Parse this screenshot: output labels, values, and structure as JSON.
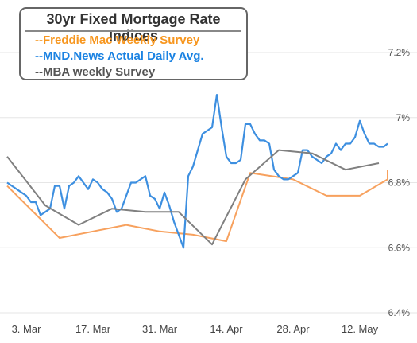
{
  "chart_data": {
    "type": "line",
    "title": "30yr Fixed Mortgage Rate Indices",
    "x_tick_labels": [
      "3. Mar",
      "17. Mar",
      "31. Mar",
      "14. Apr",
      "28. Apr",
      "12. May"
    ],
    "y_tick_labels": [
      "6.4%",
      "6.6%",
      "6.8%",
      "7%",
      "7.2%"
    ],
    "ylim": [
      6.4,
      7.2
    ],
    "xlim": [
      -4,
      78
    ],
    "grid": "horizontal",
    "legend_placement": "top-left",
    "series": [
      {
        "name": "--Freddie Mac Weekly Survey",
        "color": "#f7a15e",
        "x": [
          -4,
          7,
          14,
          21,
          28,
          35,
          42,
          47,
          56,
          63,
          70,
          77,
          84
        ],
        "y": [
          6.79,
          6.63,
          6.65,
          6.67,
          6.65,
          6.64,
          6.62,
          6.83,
          6.81,
          6.76,
          6.76,
          6.81,
          6.84
        ]
      },
      {
        "name": "--MND.News Actual Daily Avg.",
        "color": "#3d8fe0",
        "x": [
          -4,
          -3,
          -2,
          -1,
          0,
          1,
          2,
          3,
          4,
          5,
          6,
          7,
          8,
          9,
          10,
          11,
          12,
          13,
          14,
          15,
          16,
          17,
          18,
          19,
          20,
          21,
          22,
          23,
          24,
          25,
          26,
          27,
          28,
          29,
          30,
          31,
          32,
          33,
          34,
          35,
          36,
          37,
          38,
          39,
          40,
          41,
          42,
          43,
          44,
          45,
          46,
          47,
          48,
          49,
          50,
          51,
          52,
          53,
          54,
          55,
          56,
          57,
          58,
          59,
          60,
          61,
          62,
          63,
          64,
          65,
          66,
          67,
          68,
          69,
          70,
          71,
          72,
          73,
          74,
          75,
          76,
          77,
          78
        ],
        "y": [
          6.8,
          6.79,
          6.78,
          6.77,
          6.76,
          6.74,
          6.74,
          6.7,
          6.71,
          6.72,
          6.79,
          6.79,
          6.72,
          6.79,
          6.8,
          6.82,
          6.8,
          6.78,
          6.81,
          6.8,
          6.78,
          6.77,
          6.75,
          6.71,
          6.72,
          6.76,
          6.8,
          6.8,
          6.81,
          6.82,
          6.76,
          6.75,
          6.72,
          6.77,
          6.73,
          6.68,
          6.64,
          6.6,
          6.82,
          6.85,
          6.9,
          6.95,
          6.96,
          6.97,
          7.07,
          6.97,
          6.88,
          6.86,
          6.86,
          6.87,
          6.98,
          6.98,
          6.95,
          6.93,
          6.93,
          6.92,
          6.84,
          6.82,
          6.81,
          6.81,
          6.82,
          6.83,
          6.9,
          6.9,
          6.88,
          6.87,
          6.86,
          6.88,
          6.89,
          6.92,
          6.9,
          6.92,
          6.92,
          6.94,
          6.99,
          6.95,
          6.92,
          6.92,
          6.91,
          6.91,
          6.92,
          6.92,
          6.92
        ]
      },
      {
        "name": "--MBA weekly Survey",
        "color": "#808080",
        "x": [
          -4,
          4,
          11,
          18,
          25,
          32,
          39,
          46,
          53,
          60,
          67,
          74
        ],
        "y": [
          6.88,
          6.73,
          6.67,
          6.72,
          6.71,
          6.71,
          6.61,
          6.81,
          6.9,
          6.89,
          6.84,
          6.86
        ]
      }
    ]
  }
}
